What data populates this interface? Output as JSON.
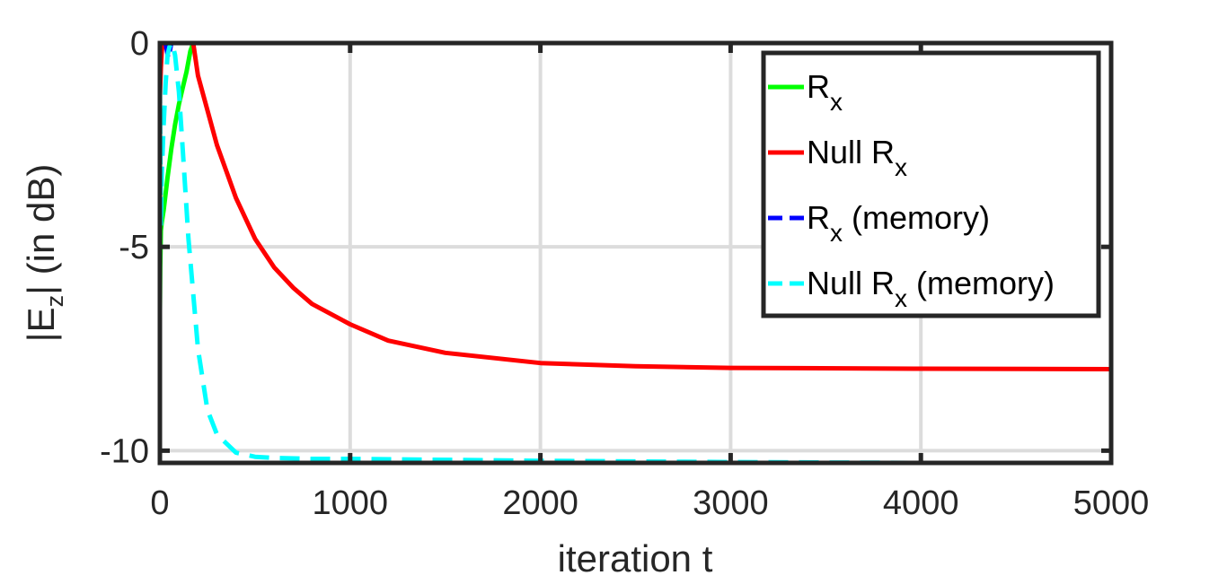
{
  "chart_data": {
    "type": "line",
    "title": "",
    "xlabel": "iteration t",
    "ylabel": "|E_z| (in dB)",
    "ylabel_parts": {
      "main": "|E",
      "sub": "z",
      "rest": "| (in dB)"
    },
    "xlim": [
      0,
      5000
    ],
    "ylim": [
      -10.3,
      0
    ],
    "x_ticks": [
      0,
      1000,
      2000,
      3000,
      4000,
      5000
    ],
    "x_tick_labels": [
      "0",
      "1000",
      "2000",
      "3000",
      "4000",
      "5000"
    ],
    "y_ticks": [
      0,
      -5,
      -10
    ],
    "y_tick_labels": [
      "0",
      "-5",
      "-10"
    ],
    "grid": true,
    "legend_position": "top-right",
    "series": [
      {
        "name": "R_x",
        "label_main": "R",
        "label_sub": "x",
        "label_rest": "",
        "color": "#00ff00",
        "dash": "solid",
        "x": [
          0,
          2,
          5,
          10,
          20,
          40,
          60,
          80,
          100,
          120,
          140,
          160,
          175,
          200,
          1000,
          2000,
          3000,
          4000,
          5000
        ],
        "y": [
          -6.6,
          -5.5,
          -4.6,
          -4.4,
          -4.1,
          -3.3,
          -2.6,
          -2.0,
          -1.5,
          -1.1,
          -0.7,
          -0.2,
          0,
          0,
          0,
          0,
          0,
          0,
          0
        ]
      },
      {
        "name": "Null R_x",
        "label_main": "Null R",
        "label_sub": "x",
        "label_rest": "",
        "color": "#ff0000",
        "dash": "solid",
        "x": [
          0,
          5,
          10,
          15,
          20,
          100,
          160,
          175,
          200,
          300,
          400,
          500,
          600,
          700,
          800,
          1000,
          1200,
          1500,
          2000,
          2500,
          3000,
          4000,
          5000
        ],
        "y": [
          -1.3,
          -0.6,
          -0.2,
          0,
          0,
          0,
          0,
          0,
          -0.8,
          -2.5,
          -3.8,
          -4.8,
          -5.5,
          -6.0,
          -6.4,
          -6.9,
          -7.3,
          -7.6,
          -7.85,
          -7.93,
          -7.97,
          -7.99,
          -8.0
        ]
      },
      {
        "name": "R_x (memory)",
        "label_main": "R",
        "label_sub": "x",
        "label_rest": " (memory)",
        "color": "#0000ff",
        "dash": "dashed",
        "x": [
          0,
          5,
          15,
          30,
          45,
          60,
          1000,
          2000,
          3000,
          4000,
          5000
        ],
        "y": [
          0,
          0,
          0,
          0,
          -0.4,
          0,
          0,
          0,
          0,
          0,
          0
        ]
      },
      {
        "name": "Null R_x (memory)",
        "label_main": "Null R",
        "label_sub": "x",
        "label_rest": " (memory)",
        "color": "#00ffff",
        "dash": "dashed",
        "x": [
          0,
          5,
          10,
          20,
          30,
          40,
          50,
          60,
          70,
          80,
          100,
          120,
          150,
          200,
          250,
          300,
          400,
          500,
          600,
          800,
          1000,
          2000,
          3000,
          4000,
          5000
        ],
        "y": [
          -1.0,
          -4.5,
          -3.2,
          -2.0,
          -1.0,
          -0.3,
          -0.1,
          0,
          -0.1,
          -0.3,
          -1.2,
          -2.6,
          -4.8,
          -7.5,
          -9.0,
          -9.6,
          -10.05,
          -10.15,
          -10.18,
          -10.2,
          -10.2,
          -10.25,
          -10.28,
          -10.3,
          -10.3
        ]
      }
    ]
  }
}
